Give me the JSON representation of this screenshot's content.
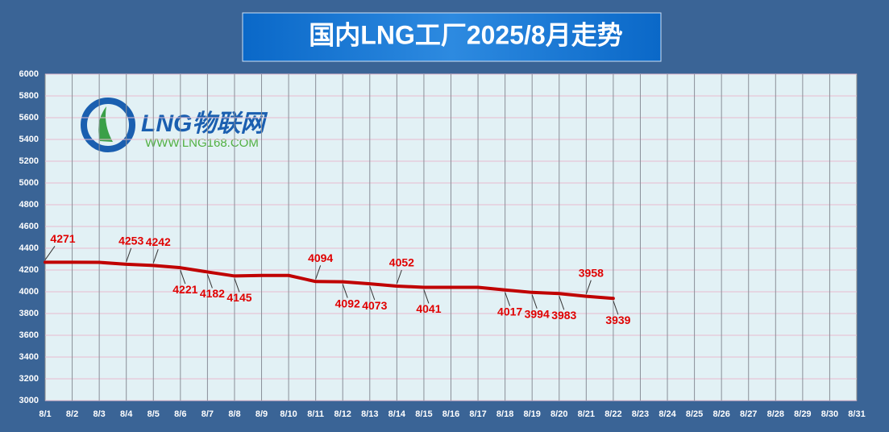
{
  "chart_data": {
    "type": "line",
    "title": "国内LNG工厂2025/8月走势",
    "logo": {
      "name": "LNG物联网",
      "url": "WWW.LNG168.COM"
    },
    "categories": [
      "8/1",
      "8/2",
      "8/3",
      "8/4",
      "8/5",
      "8/6",
      "8/7",
      "8/8",
      "8/9",
      "8/10",
      "8/11",
      "8/12",
      "8/13",
      "8/14",
      "8/15",
      "8/16",
      "8/17",
      "8/18",
      "8/19",
      "8/20",
      "8/21",
      "8/22",
      "8/23",
      "8/24",
      "8/25",
      "8/26",
      "8/27",
      "8/28",
      "8/29",
      "8/30",
      "8/31"
    ],
    "series": [
      {
        "name": "LNG",
        "color": "#c00000",
        "values": [
          4271,
          4271,
          4270,
          4253,
          4242,
          4221,
          4182,
          4145,
          4150,
          4150,
          4094,
          4092,
          4073,
          4052,
          4041,
          4041,
          4041,
          4017,
          3994,
          3983,
          3958,
          3939,
          null,
          null,
          null,
          null,
          null,
          null,
          null,
          null,
          null
        ],
        "value_labels": [
          "4271",
          null,
          null,
          "4253",
          "4242",
          "4221",
          "4182",
          "4145",
          null,
          null,
          "4094",
          "4092",
          "4073",
          "4052",
          "4041",
          null,
          null,
          "4017",
          "3994",
          "3983",
          "3958",
          "3939",
          null,
          null,
          null,
          null,
          null,
          null,
          null,
          null,
          null
        ]
      }
    ],
    "ylim": [
      3000,
      6000
    ],
    "yticks": [
      3000,
      3200,
      3400,
      3600,
      3800,
      4000,
      4200,
      4400,
      4600,
      4800,
      5000,
      5200,
      5400,
      5600,
      5800,
      6000
    ],
    "grid": true
  }
}
